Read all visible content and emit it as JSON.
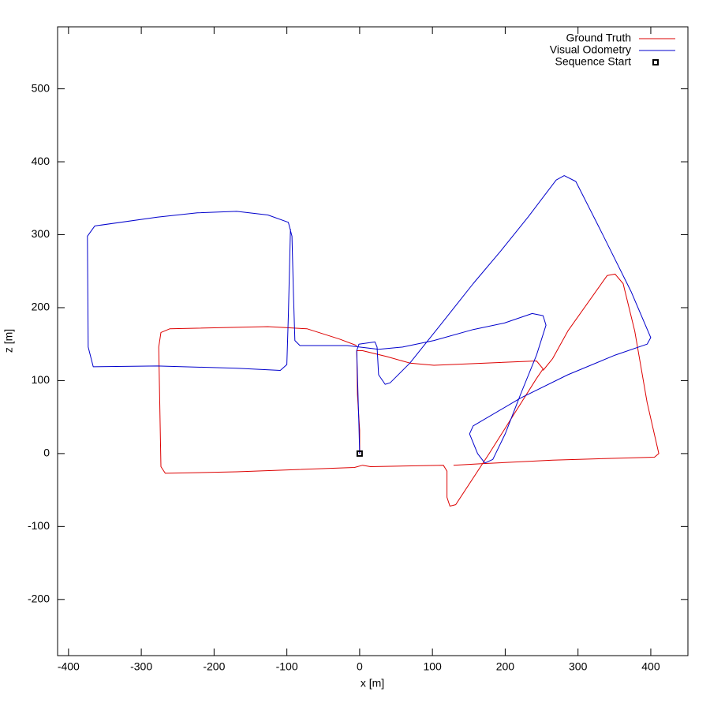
{
  "chart_data": {
    "type": "line",
    "xlabel": "x [m]",
    "ylabel": "z [m]",
    "xlim": [
      -415,
      451
    ],
    "ylim": [
      -277,
      585
    ],
    "xticks": [
      -400,
      -300,
      -200,
      -100,
      0,
      100,
      200,
      300,
      400
    ],
    "yticks": [
      -200,
      -100,
      0,
      100,
      200,
      300,
      400,
      500
    ],
    "legend": "upper right",
    "series": [
      {
        "name": "Ground Truth",
        "color": "#dd0000",
        "style": "line",
        "x": [
          0,
          0,
          -3,
          -4,
          4,
          37,
          69,
          102,
          243,
          252,
          243,
          178,
          132,
          124,
          120,
          120,
          115,
          15,
          4,
          -7,
          -169,
          -267,
          -273,
          -276,
          -273,
          -261,
          -126,
          -72,
          -28,
          -4,
          null,
          252,
          265,
          286,
          340,
          351,
          362,
          378,
          395,
          411,
          405,
          265,
          167,
          129
        ],
        "values": [
          0,
          32,
          81,
          141,
          141,
          133,
          124,
          121,
          127,
          116,
          103,
          0,
          -70,
          -72,
          -60,
          -24,
          -16,
          -18,
          -16,
          -19,
          -25,
          -27,
          -18,
          146,
          166,
          171,
          174,
          171,
          157,
          148,
          null,
          114,
          130,
          168,
          244,
          246,
          233,
          168,
          70,
          0,
          -5,
          -9,
          -14,
          -16
        ]
      },
      {
        "name": "Visual Odometry",
        "color": "#0000cc",
        "style": "line",
        "x": [
          0,
          -1,
          -4,
          -1,
          21,
          24,
          26,
          35,
          42,
          69,
          113,
          156,
          194,
          232,
          270,
          281,
          297,
          330,
          373,
          400,
          395,
          351,
          286,
          221,
          156,
          151,
          162,
          172,
          183,
          200,
          221,
          243,
          256,
          252,
          237,
          199,
          156,
          102,
          59,
          26,
          -17,
          -82,
          -89,
          -91,
          -93,
          -98,
          -126,
          -169,
          -223,
          -278,
          -364,
          -374,
          -373,
          -366,
          -278,
          -169,
          -109,
          -100,
          -98,
          -95
        ],
        "values": [
          0,
          38,
          141,
          150,
          153,
          146,
          108,
          95,
          97,
          124,
          179,
          233,
          278,
          325,
          375,
          381,
          373,
          308,
          222,
          159,
          150,
          135,
          108,
          76,
          38,
          27,
          0,
          -13,
          -8,
          27,
          81,
          135,
          176,
          189,
          192,
          179,
          170,
          155,
          146,
          143,
          148,
          148,
          155,
          222,
          298,
          317,
          327,
          332,
          330,
          324,
          312,
          298,
          146,
          119,
          120,
          117,
          114,
          122,
          189,
          308
        ]
      },
      {
        "name": "Sequence Start",
        "color": "#000000",
        "style": "square",
        "x": [
          0
        ],
        "values": [
          0
        ]
      }
    ]
  }
}
